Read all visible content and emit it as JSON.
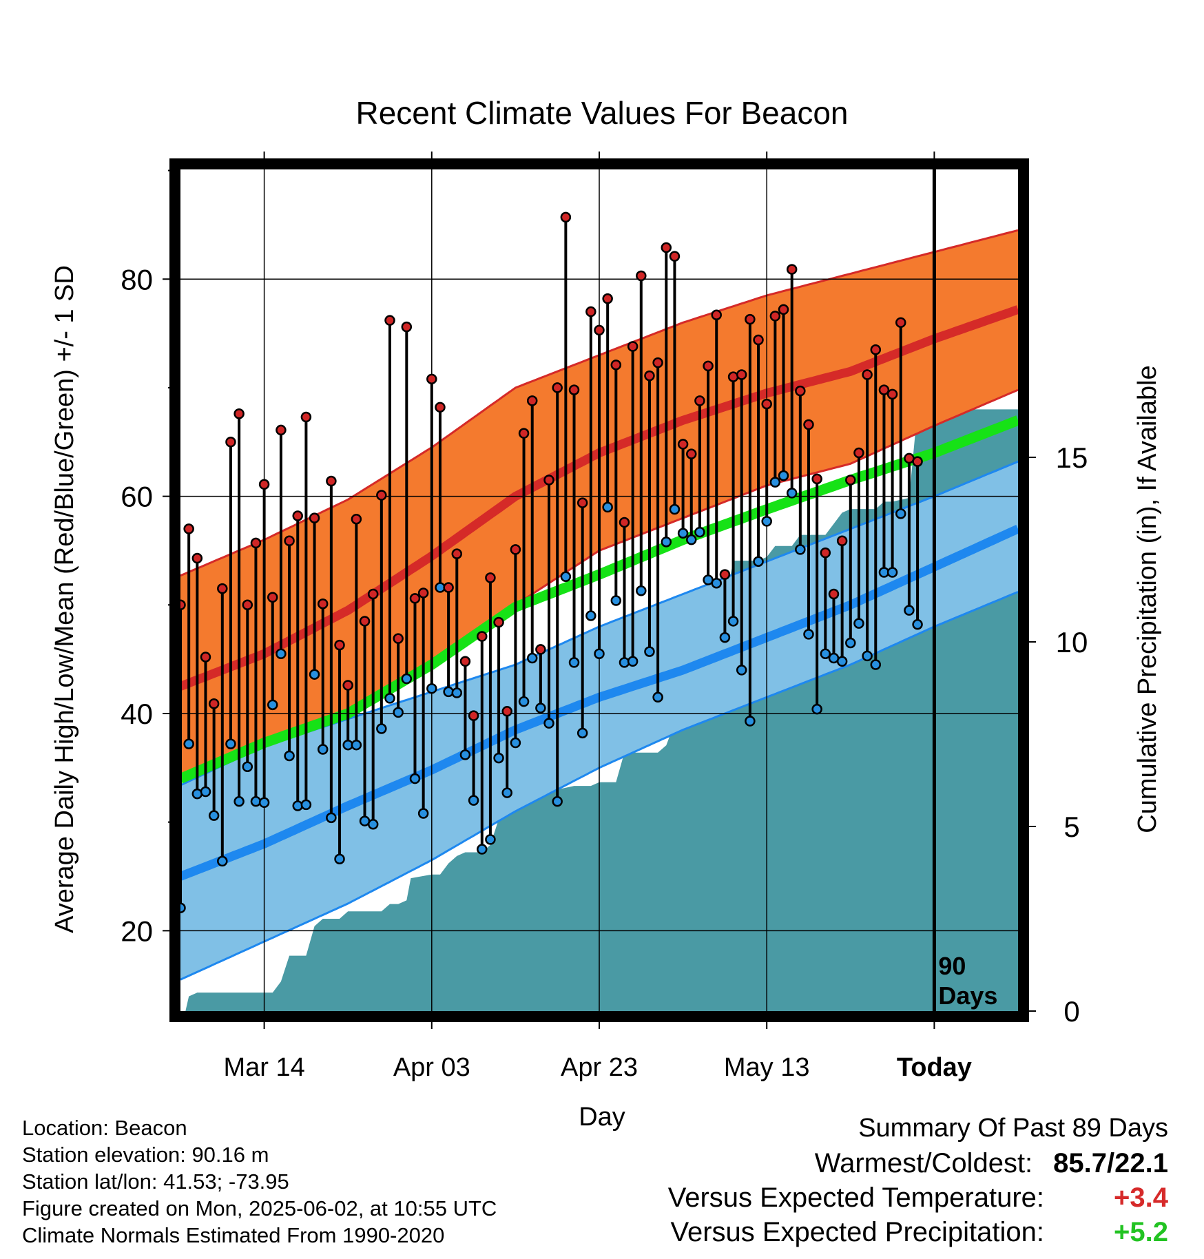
{
  "chart_data": {
    "type": "line",
    "title": "Recent Climate Values For Beacon",
    "xlabel": "Day",
    "ylabel_left": "Average Daily High/Low/Mean (Red/Blue/Green) +/- 1 SD",
    "ylabel_right": "Cumulative Precipitation (in), If Available",
    "y_left_range": [
      12.6,
      90.1
    ],
    "y_left_ticks": [
      "20",
      "40",
      "60",
      "80"
    ],
    "y_right_range": [
      0,
      22.8
    ],
    "y_right_ticks": [
      "0",
      "5",
      "10",
      "15"
    ],
    "x_range": [
      0,
      100
    ],
    "x_ticks": [
      {
        "day": 10,
        "label": "Mar 14"
      },
      {
        "day": 30,
        "label": "Apr 03"
      },
      {
        "day": 50,
        "label": "Apr 23"
      },
      {
        "day": 70,
        "label": "May 13"
      },
      {
        "day": 90,
        "label": "Today"
      }
    ],
    "grid": true,
    "today_marker": {
      "day": 90,
      "label_top": "90",
      "label_bottom": "Days"
    },
    "colors": {
      "high_band": "#f47a2e",
      "high_line": "#d52a28",
      "low_band": "#80c0e6",
      "low_line": "#1e88ef",
      "mean_line": "#16e216",
      "precip": "#4a9aa4",
      "high_point": "#d02626",
      "low_point": "#2890e0"
    },
    "normals": {
      "days": [
        0,
        10,
        20,
        30,
        40,
        50,
        60,
        70,
        80,
        90,
        100
      ],
      "high_mean": [
        42.5,
        45.5,
        49.5,
        54.5,
        60.0,
        64.0,
        67.0,
        69.5,
        71.5,
        74.5,
        77.2
      ],
      "high_upper": [
        52.7,
        56.0,
        59.7,
        64.5,
        70.0,
        73.0,
        76.0,
        78.5,
        80.5,
        82.5,
        84.5
      ],
      "high_lower": [
        34.4,
        37.0,
        40.0,
        44.3,
        50.0,
        55.0,
        58.0,
        61.0,
        63.0,
        66.5,
        69.8
      ],
      "mean": [
        34.0,
        37.3,
        40.0,
        44.5,
        49.8,
        52.8,
        56.0,
        58.8,
        61.5,
        64.0,
        67.0
      ],
      "low_mean": [
        25.0,
        28.0,
        31.5,
        34.8,
        38.5,
        41.5,
        44.0,
        47.0,
        50.0,
        53.5,
        57.0
      ],
      "low_upper": [
        33.4,
        37.0,
        39.5,
        42.0,
        44.5,
        48.0,
        51.0,
        54.0,
        57.0,
        60.0,
        63.2
      ],
      "low_lower": [
        15.5,
        19.0,
        22.5,
        26.5,
        31.0,
        35.0,
        38.5,
        41.5,
        44.5,
        48.0,
        51.2
      ]
    },
    "daily_high": [
      50.0,
      57.0,
      54.3,
      45.2,
      40.9,
      51.5,
      65.0,
      67.6,
      50.0,
      55.7,
      61.1,
      50.7,
      66.1,
      55.9,
      58.2,
      67.3,
      58.0,
      50.1,
      61.4,
      46.3,
      42.6,
      57.9,
      48.5,
      51.0,
      60.1,
      76.2,
      46.9,
      75.6,
      50.6,
      51.1,
      70.8,
      68.2,
      51.6,
      54.7,
      44.8,
      39.8,
      47.1,
      52.5,
      48.4,
      40.2,
      55.1,
      65.8,
      68.8,
      45.9,
      61.5,
      70.0,
      85.7,
      69.8,
      59.4,
      77.0,
      75.3,
      78.2,
      72.1,
      57.6,
      73.8,
      80.3,
      71.1,
      72.3,
      82.9,
      82.1,
      64.8,
      63.9,
      68.8,
      72.0,
      76.7,
      52.8,
      71.0,
      71.2,
      76.3,
      74.4,
      68.5,
      76.6,
      77.2,
      80.9,
      69.7,
      66.6,
      61.6,
      54.8,
      51.0,
      55.9,
      61.5,
      64.0,
      71.2,
      73.5,
      69.8,
      69.4,
      76.0,
      63.5,
      63.2
    ],
    "daily_low": [
      22.1,
      37.2,
      32.6,
      32.8,
      30.6,
      26.4,
      37.2,
      31.9,
      35.1,
      31.9,
      31.8,
      40.8,
      45.5,
      36.1,
      31.5,
      31.6,
      43.6,
      36.7,
      30.4,
      26.6,
      37.1,
      37.1,
      30.1,
      29.8,
      38.6,
      41.4,
      40.1,
      43.2,
      34.0,
      30.8,
      42.3,
      51.6,
      42.0,
      41.9,
      36.2,
      32.0,
      27.5,
      28.4,
      35.9,
      32.7,
      37.3,
      41.1,
      45.1,
      40.5,
      39.1,
      31.9,
      52.6,
      44.7,
      38.2,
      49.0,
      45.5,
      59.0,
      50.4,
      44.7,
      44.8,
      51.3,
      45.7,
      41.5,
      55.8,
      58.8,
      56.6,
      56.0,
      56.7,
      52.3,
      52.0,
      47.0,
      48.5,
      44.0,
      39.3,
      54.0,
      57.7,
      61.3,
      61.9,
      60.3,
      55.1,
      47.3,
      40.4,
      45.5,
      45.1,
      44.8,
      46.5,
      48.3,
      45.3,
      44.5,
      53.0,
      53.0,
      58.4,
      49.5,
      48.2
    ],
    "precip_cumulative": [
      [
        0,
        0.0
      ],
      [
        0.6,
        0.0
      ],
      [
        1,
        0.4
      ],
      [
        2,
        0.5
      ],
      [
        11,
        0.5
      ],
      [
        12,
        0.8
      ],
      [
        13,
        1.5
      ],
      [
        15,
        1.5
      ],
      [
        16,
        2.3
      ],
      [
        17,
        2.5
      ],
      [
        19,
        2.5
      ],
      [
        20,
        2.7
      ],
      [
        24,
        2.7
      ],
      [
        25,
        2.9
      ],
      [
        26,
        2.9
      ],
      [
        27,
        3.0
      ],
      [
        27.5,
        3.6
      ],
      [
        30,
        3.7
      ],
      [
        31,
        3.7
      ],
      [
        32,
        4.0
      ],
      [
        33,
        4.2
      ],
      [
        34,
        4.3
      ],
      [
        36,
        4.3
      ],
      [
        37,
        4.5
      ],
      [
        38,
        5.2
      ],
      [
        39,
        6.0
      ],
      [
        43,
        6.0
      ],
      [
        45,
        6.0
      ],
      [
        47,
        6.1
      ],
      [
        49,
        6.1
      ],
      [
        50,
        6.2
      ],
      [
        52,
        6.2
      ],
      [
        53,
        7.0
      ],
      [
        55,
        7.0
      ],
      [
        57,
        7.0
      ],
      [
        58,
        7.2
      ],
      [
        59,
        7.8
      ],
      [
        60,
        8.5
      ],
      [
        61,
        9.5
      ],
      [
        62,
        9.9
      ],
      [
        64,
        9.9
      ],
      [
        65,
        11.0
      ],
      [
        66,
        12.2
      ],
      [
        69,
        12.2
      ],
      [
        70,
        12.3
      ],
      [
        71,
        12.6
      ],
      [
        73,
        12.6
      ],
      [
        74,
        12.9
      ],
      [
        77,
        12.9
      ],
      [
        78,
        13.2
      ],
      [
        79,
        13.5
      ],
      [
        80,
        13.6
      ],
      [
        83,
        13.6
      ],
      [
        84,
        13.8
      ],
      [
        85,
        13.8
      ],
      [
        87,
        13.9
      ],
      [
        88,
        16.3
      ],
      [
        92,
        16.3
      ],
      [
        100,
        16.3
      ]
    ]
  },
  "info": {
    "location": "Location: Beacon",
    "elevation": "Station elevation: 90.16 m",
    "latlon": "Station lat/lon: 41.53; -73.95",
    "created": "Figure created on Mon, 2025-06-02, at 10:55 UTC",
    "normals": "Climate Normals Estimated From 1990-2020"
  },
  "summary": {
    "title": "Summary Of Past 89 Days",
    "warmest_label": "Warmest/Coldest:",
    "warmest_value": "85.7/22.1",
    "temp_label": "Versus Expected Temperature:",
    "temp_value": "+3.4",
    "temp_color": "#d62a2a",
    "precip_label": "Versus Expected Precipitation:",
    "precip_value": "+5.2",
    "precip_color": "#22c322"
  }
}
